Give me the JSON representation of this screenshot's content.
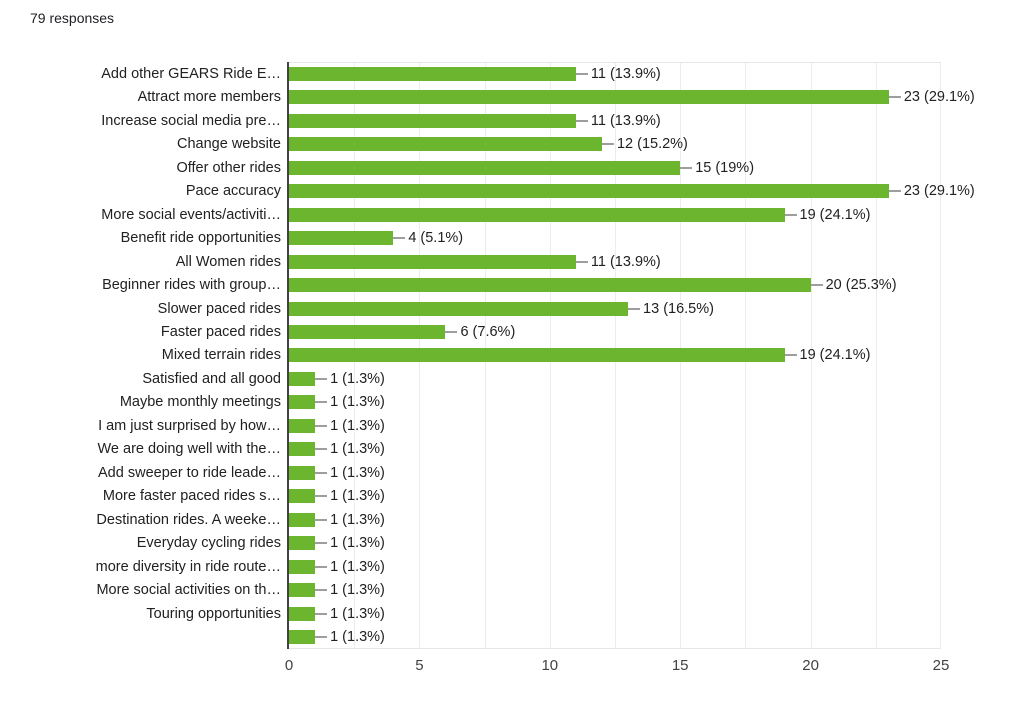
{
  "header": {
    "responses_label": "79 responses"
  },
  "chart_data": {
    "type": "bar",
    "orientation": "horizontal",
    "title": "",
    "xlabel": "",
    "ylabel": "",
    "categories": [
      "Add other GEARS Ride E…",
      "Attract more members",
      "Increase social media pre…",
      "Change website",
      "Offer other rides",
      "Pace accuracy",
      "More social events/activiti…",
      "Benefit ride opportunities",
      "All Women rides",
      "Beginner rides with group…",
      "Slower paced rides",
      "Faster paced rides",
      "Mixed terrain rides",
      "Satisfied and all good",
      "Maybe monthly meetings",
      "I am just surprised by how…",
      "We are doing well with the…",
      "Add sweeper to ride leade…",
      "More faster paced rides s…",
      "Destination rides. A weeke…",
      "Everyday cycling rides",
      "more diversity in ride route…",
      "More social activities on th…",
      "Touring opportunities",
      ""
    ],
    "values": [
      11,
      23,
      11,
      12,
      15,
      23,
      19,
      4,
      11,
      20,
      13,
      6,
      19,
      1,
      1,
      1,
      1,
      1,
      1,
      1,
      1,
      1,
      1,
      1,
      1
    ],
    "value_labels": [
      "11 (13.9%)",
      "23 (29.1%)",
      "11 (13.9%)",
      "12 (15.2%)",
      "15 (19%)",
      "23 (29.1%)",
      "19 (24.1%)",
      "4 (5.1%)",
      "11 (13.9%)",
      "20 (25.3%)",
      "13 (16.5%)",
      "6 (7.6%)",
      "19 (24.1%)",
      "1 (1.3%)",
      "1 (1.3%)",
      "1 (1.3%)",
      "1 (1.3%)",
      "1 (1.3%)",
      "1 (1.3%)",
      "1 (1.3%)",
      "1 (1.3%)",
      "1 (1.3%)",
      "1 (1.3%)",
      "1 (1.3%)",
      "1 (1.3%)"
    ],
    "xlim": [
      0,
      25
    ],
    "xticks": [
      0,
      5,
      10,
      15,
      20,
      25
    ],
    "gridline_step": 2.5,
    "grid": "vertical gridlines on",
    "legend": "none",
    "colors": {
      "bar": "#6cb52e",
      "axis_line": "#424242",
      "gridline": "#ececec",
      "plot_border": "#e6e6e6",
      "whisker": "#9e9e9e",
      "label_text": "#212121",
      "tick_text": "#424242",
      "responses_text": "#202124"
    }
  }
}
